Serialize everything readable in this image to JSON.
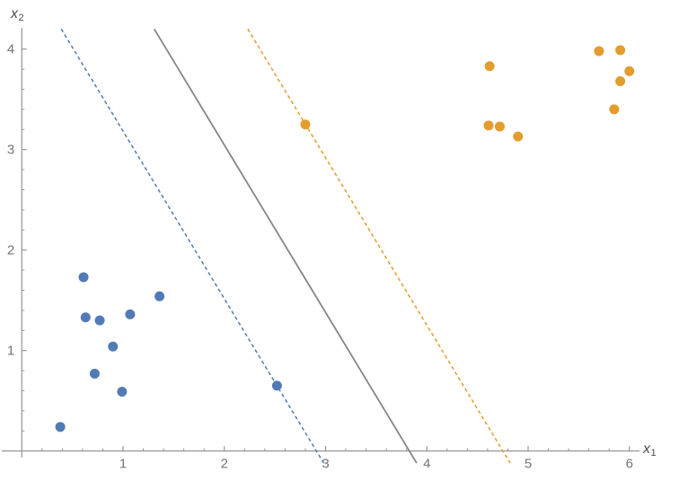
{
  "chart_data": {
    "type": "scatter",
    "title": "",
    "xlabel": {
      "base": "x",
      "sub": "1"
    },
    "ylabel": {
      "base": "x",
      "sub": "2"
    },
    "xlim": [
      0,
      6.1
    ],
    "ylim": [
      -0.12,
      4.2
    ],
    "grid": false,
    "legend_position": "none",
    "x_major_ticks": [
      1,
      2,
      3,
      4,
      5,
      6
    ],
    "y_major_ticks": [
      1,
      2,
      3,
      4
    ],
    "minor_tick_step": 0.2,
    "series": [
      {
        "name": "class-1-blue",
        "color": "#527AB6",
        "points": [
          [
            0.61,
            1.73
          ],
          [
            1.36,
            1.54
          ],
          [
            0.63,
            1.33
          ],
          [
            0.77,
            1.3
          ],
          [
            1.07,
            1.36
          ],
          [
            0.9,
            1.04
          ],
          [
            0.72,
            0.77
          ],
          [
            0.99,
            0.59
          ],
          [
            0.38,
            0.24
          ],
          [
            2.52,
            0.65
          ]
        ]
      },
      {
        "name": "class-2-orange",
        "color": "#E39C2E",
        "points": [
          [
            2.8,
            3.25
          ],
          [
            4.62,
            3.83
          ],
          [
            4.61,
            3.24
          ],
          [
            4.72,
            3.23
          ],
          [
            4.9,
            3.13
          ],
          [
            5.7,
            3.98
          ],
          [
            5.91,
            3.99
          ],
          [
            6.0,
            3.78
          ],
          [
            5.91,
            3.68
          ],
          [
            5.85,
            3.4
          ]
        ]
      }
    ],
    "lines": [
      {
        "name": "margin-line-blue",
        "slope": -1.667,
        "intercept": 4.85,
        "style": "dashed",
        "color": "#527AB6"
      },
      {
        "name": "decision-boundary-line",
        "slope": -1.667,
        "intercept": 6.38,
        "style": "solid",
        "color": "#868686"
      },
      {
        "name": "margin-line-orange",
        "slope": -1.667,
        "intercept": 7.92,
        "style": "dashed",
        "color": "#E39C2E"
      }
    ],
    "support_vectors": [
      {
        "series": "class-1-blue",
        "point": [
          2.52,
          0.65
        ]
      },
      {
        "series": "class-2-orange",
        "point": [
          2.8,
          3.25
        ]
      }
    ],
    "axis_color": "#8C8C8C",
    "tick_label_color": "#747474",
    "axis_label_color": "#4D4D4D"
  }
}
